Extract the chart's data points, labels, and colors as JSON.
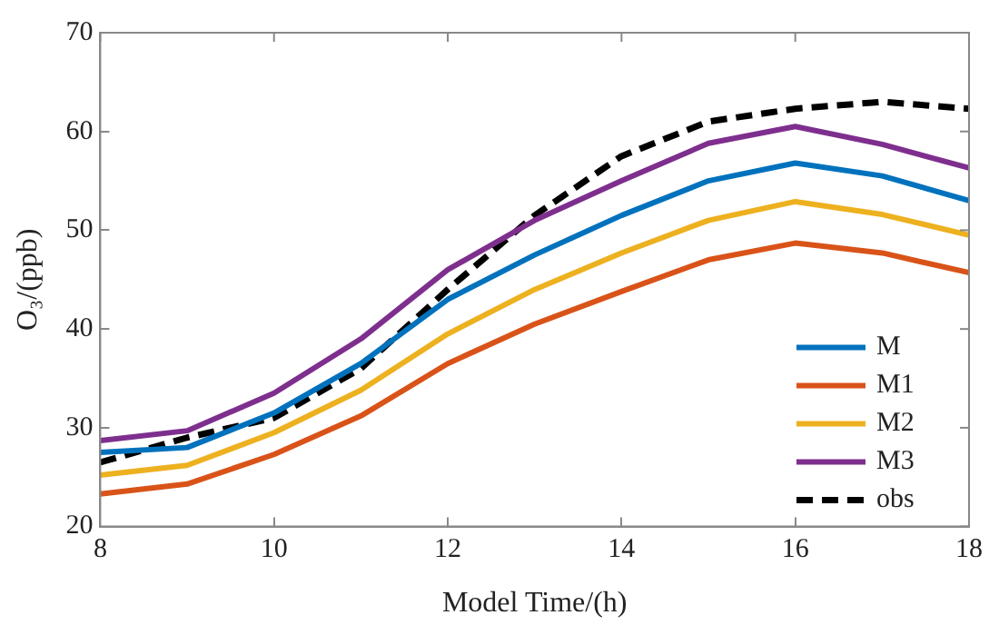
{
  "chart_data": {
    "type": "line",
    "xlabel": "Model Time/(h)",
    "ylabel": "O₃/(ppb)",
    "x": [
      8,
      9,
      10,
      11,
      12,
      13,
      14,
      15,
      16,
      17,
      18
    ],
    "xlim": [
      8,
      18
    ],
    "xticks": [
      8,
      10,
      12,
      14,
      16,
      18
    ],
    "ylim": [
      20,
      70
    ],
    "yticks": [
      20,
      30,
      40,
      50,
      60,
      70
    ],
    "grid": false,
    "legend": "bottom right",
    "marker": "none",
    "series": [
      {
        "name": "M",
        "color": "#0072bd",
        "values": [
          27.5,
          28,
          31.5,
          36.5,
          43,
          47.5,
          51.5,
          55,
          56.8,
          55.5,
          53
        ]
      },
      {
        "name": "M1",
        "color": "#d95319",
        "values": [
          23.3,
          24.3,
          27.3,
          31.2,
          36.5,
          40.5,
          43.8,
          47,
          48.7,
          47.7,
          45.7
        ]
      },
      {
        "name": "M2",
        "color": "#edb120",
        "values": [
          25.2,
          26.2,
          29.5,
          33.8,
          39.5,
          44,
          47.7,
          51,
          52.9,
          51.6,
          49.5
        ]
      },
      {
        "name": "M3",
        "color": "#7e2f8e",
        "values": [
          28.7,
          29.7,
          33.5,
          39,
          46,
          51,
          55,
          58.8,
          60.5,
          58.7,
          56.3
        ]
      },
      {
        "name": "obs",
        "color": "#000000",
        "line_style": "dashed",
        "values": [
          26.5,
          29,
          31,
          36,
          44,
          51.5,
          57.5,
          61,
          62.3,
          63,
          62.3
        ]
      }
    ]
  }
}
